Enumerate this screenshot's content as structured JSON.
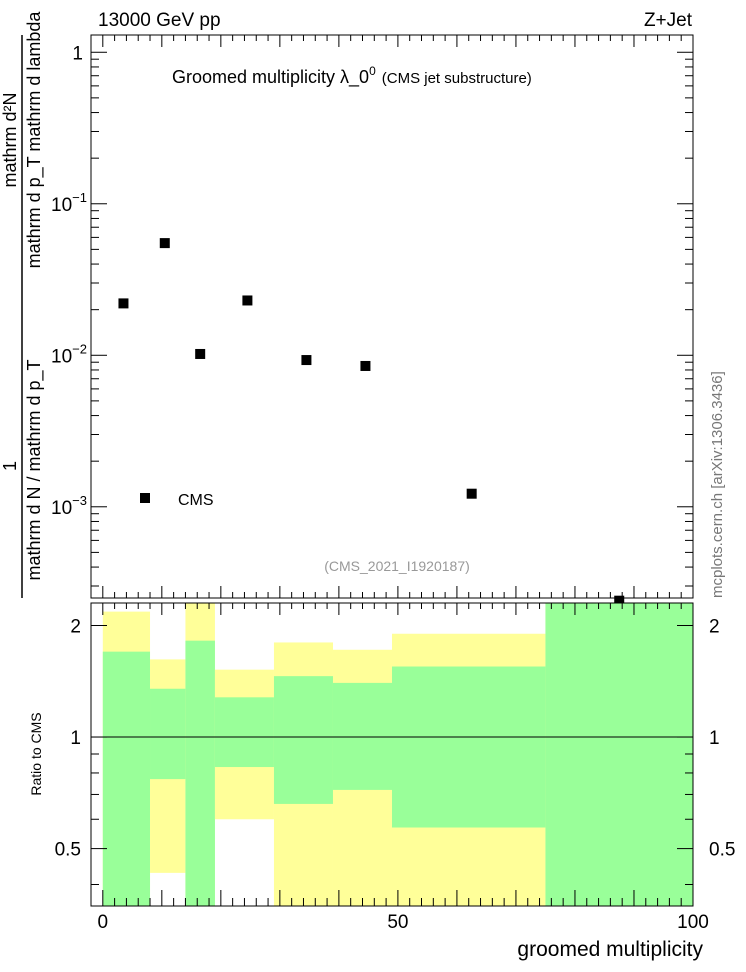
{
  "header": {
    "left": "13000 GeV pp",
    "right": "Z+Jet"
  },
  "side_label": "mcplots.cern.ch [arXiv:1306.3436]",
  "chart_data": [
    {
      "type": "scatter",
      "title": "Groomed multiplicity  λ_0",
      "title_sup": "0",
      "title_suffix": "(CMS jet substructure)",
      "ylabel_numerator": "mathrm d²N",
      "ylabel_denominator": "mathrm d p_T mathrm d lambda",
      "ylabel_full_left": "1",
      "ylabel_full_left_denominator": "mathrm d N / mathrm d p_T",
      "yscale": "log",
      "ylim": [
        0.00025,
        1.3
      ],
      "xlim": [
        -2,
        100
      ],
      "y_ticks": [
        {
          "value": 1,
          "label": "1"
        },
        {
          "value": 0.1,
          "label": "10",
          "exp": "−1"
        },
        {
          "value": 0.01,
          "label": "10",
          "exp": "−2"
        },
        {
          "value": 0.001,
          "label": "10",
          "exp": "−3"
        }
      ],
      "series": [
        {
          "name": "CMS",
          "points": [
            {
              "x": 3.5,
              "y": 0.022
            },
            {
              "x": 10.5,
              "y": 0.055
            },
            {
              "x": 16.5,
              "y": 0.0102
            },
            {
              "x": 24.5,
              "y": 0.023
            },
            {
              "x": 34.5,
              "y": 0.0093
            },
            {
              "x": 44.5,
              "y": 0.0085
            },
            {
              "x": 62.5,
              "y": 0.00122
            },
            {
              "x": 87.5,
              "y": 0.00024
            }
          ]
        }
      ],
      "legend": {
        "entry": "CMS",
        "placement": "bottom-left"
      },
      "watermark": "(CMS_2021_I1920187)"
    },
    {
      "type": "area",
      "ylabel": "Ratio to CMS",
      "xlabel": "groomed multiplicity",
      "ylim": [
        0.35,
        2.3
      ],
      "xlim": [
        -2,
        100
      ],
      "y_ticks": [
        {
          "value": 0.5,
          "label": "0.5"
        },
        {
          "value": 1,
          "label": "1"
        },
        {
          "value": 2,
          "label": "2"
        }
      ],
      "x_ticks": [
        {
          "value": 0,
          "label": "0"
        },
        {
          "value": 50,
          "label": "50"
        },
        {
          "value": 100,
          "label": "100"
        }
      ],
      "reference_line": 1,
      "bands": [
        {
          "x0": 0,
          "x1": 8,
          "yellow": [
            0.35,
            2.18
          ],
          "green": [
            0.35,
            1.7
          ]
        },
        {
          "x0": 8,
          "x1": 14,
          "yellow": [
            0.43,
            1.62
          ],
          "green": [
            0.77,
            1.35
          ]
        },
        {
          "x0": 14,
          "x1": 19,
          "yellow": [
            0.35,
            2.3
          ],
          "green": [
            0.35,
            1.82
          ]
        },
        {
          "x0": 19,
          "x1": 29,
          "yellow": [
            0.6,
            1.52
          ],
          "green": [
            0.83,
            1.28
          ]
        },
        {
          "x0": 29,
          "x1": 39,
          "yellow": [
            0.35,
            1.8
          ],
          "green": [
            0.66,
            1.46
          ]
        },
        {
          "x0": 39,
          "x1": 49,
          "yellow": [
            0.35,
            1.72
          ],
          "green": [
            0.72,
            1.4
          ]
        },
        {
          "x0": 49,
          "x1": 75,
          "yellow": [
            0.35,
            1.9
          ],
          "green": [
            0.57,
            1.55
          ]
        },
        {
          "x0": 75,
          "x1": 100,
          "yellow": [
            0.35,
            2.3
          ],
          "green": [
            0.35,
            2.3
          ]
        }
      ],
      "colors": {
        "yellow": "#ffff99",
        "green": "#99ff99"
      }
    }
  ]
}
